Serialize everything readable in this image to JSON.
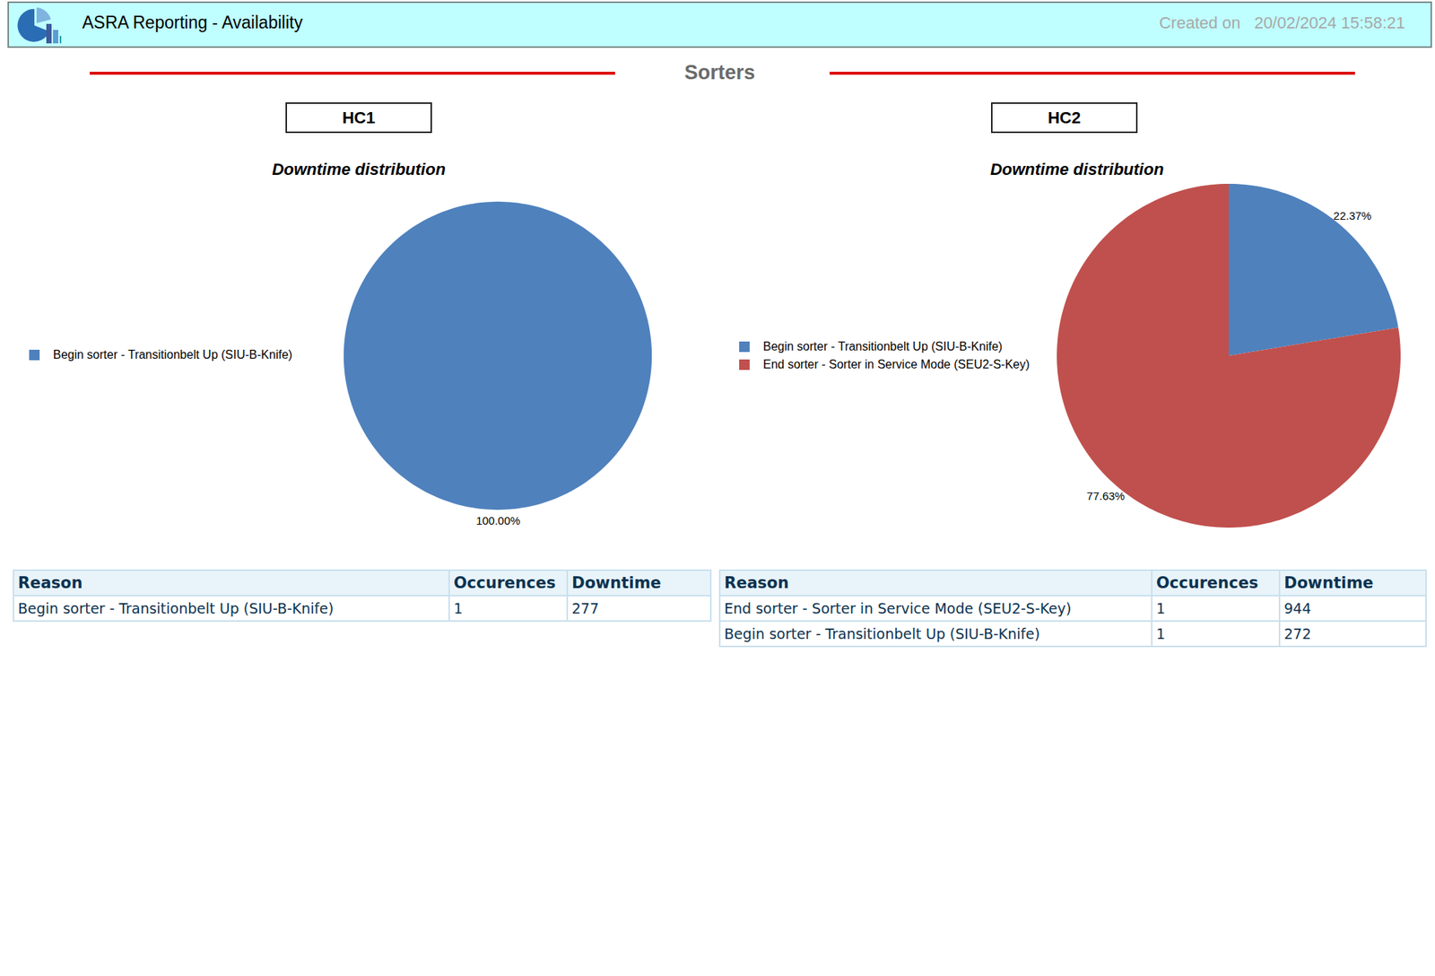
{
  "header": {
    "title": "ASRA Reporting - Availability",
    "created_label": "Created on",
    "created": "20/02/2024 15:58:21"
  },
  "section": "Sorters",
  "panels": [
    "HC1",
    "HC2"
  ],
  "chart_data": [
    {
      "type": "pie",
      "title": "Downtime distribution",
      "categories": [
        "Begin sorter - Transitionbelt Up (SIU-B-Knife)"
      ],
      "values": [
        100
      ],
      "value_labels": [
        "100.00%"
      ],
      "colors": [
        "#4f81bd"
      ],
      "data_labels": true,
      "legend": "left"
    },
    {
      "type": "pie",
      "title": "Downtime distribution",
      "categories": [
        "Begin sorter - Transitionbelt Up (SIU-B-Knife)",
        "End sorter - Sorter in Service Mode (SEU2-S-Key)"
      ],
      "values": [
        22.37,
        77.63
      ],
      "value_labels": [
        "22.37%",
        "77.63%"
      ],
      "colors": [
        "#4f81bd",
        "#c0504d"
      ],
      "data_labels": true,
      "legend": "left"
    }
  ],
  "tables": [
    {
      "columns": [
        "Reason",
        "Occurences",
        "Downtime"
      ],
      "rows": [
        [
          "Begin sorter - Transitionbelt Up (SIU-B-Knife)",
          1,
          277
        ]
      ]
    },
    {
      "columns": [
        "Reason",
        "Occurences",
        "Downtime"
      ],
      "rows": [
        [
          "End sorter - Sorter in Service Mode (SEU2-S-Key)",
          1,
          944
        ],
        [
          "Begin sorter - Transitionbelt Up (SIU-B-Knife)",
          1,
          272
        ]
      ]
    }
  ]
}
